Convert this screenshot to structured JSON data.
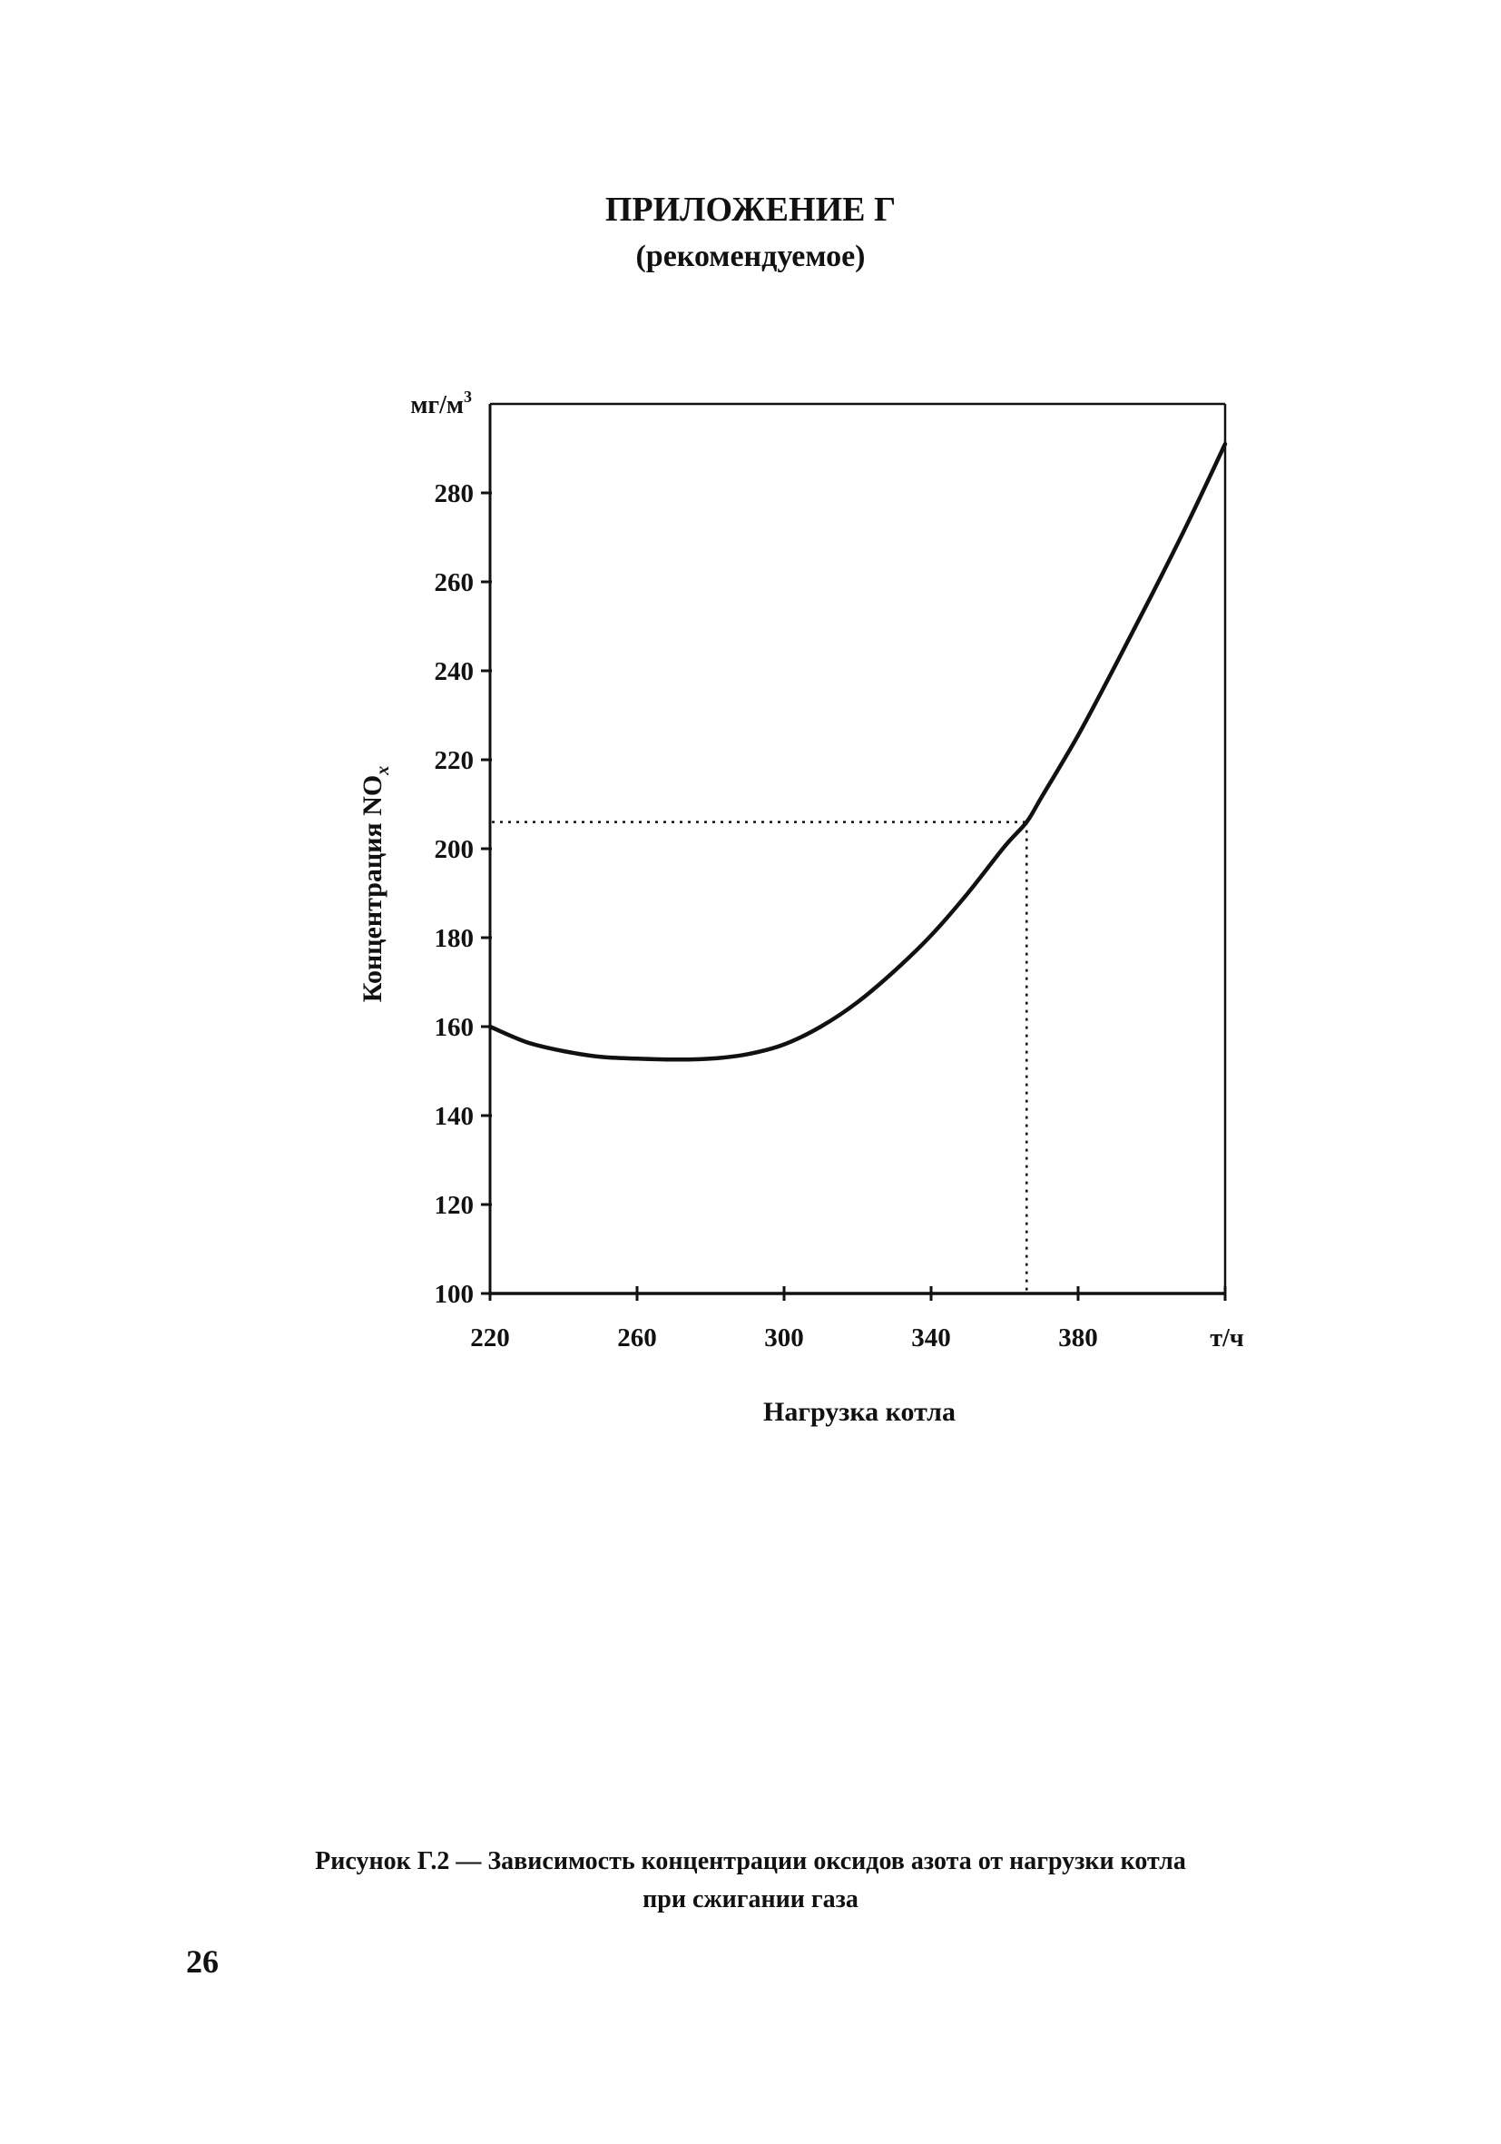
{
  "document": {
    "appendix_title": "ПРИЛОЖЕНИЕ Г",
    "appendix_status": "(рекомендуемое)",
    "caption_line1": "Рисунок Г.2 — Зависимость концентрации оксидов азота от нагрузки котла",
    "caption_line2": "при сжигании газа",
    "page_number": "26"
  },
  "chart_data": {
    "type": "line",
    "title": "",
    "xlabel": "Нагрузка котла",
    "x_unit": "т/ч",
    "ylabel": "Концентрация NO",
    "ylabel_subscript": "x",
    "y_unit": "мг/м",
    "y_unit_superscript": "3",
    "xlim": [
      220,
      420
    ],
    "ylim": [
      100,
      300
    ],
    "x_ticks": [
      220,
      260,
      300,
      340,
      380
    ],
    "y_ticks": [
      100,
      120,
      140,
      160,
      180,
      200,
      220,
      240,
      260,
      280
    ],
    "grid": false,
    "series": [
      {
        "points": [
          [
            220,
            160
          ],
          [
            230,
            156.5
          ],
          [
            240,
            154.5
          ],
          [
            250,
            153.2
          ],
          [
            260,
            152.8
          ],
          [
            270,
            152.6
          ],
          [
            280,
            152.8
          ],
          [
            290,
            153.8
          ],
          [
            300,
            156
          ],
          [
            310,
            160
          ],
          [
            320,
            165.5
          ],
          [
            330,
            172.5
          ],
          [
            340,
            180.5
          ],
          [
            350,
            190
          ],
          [
            360,
            200.5
          ],
          [
            366,
            206
          ],
          [
            370,
            211.5
          ],
          [
            380,
            225.5
          ],
          [
            390,
            241
          ],
          [
            400,
            257
          ],
          [
            410,
            273.5
          ],
          [
            420,
            291
          ]
        ]
      }
    ],
    "reference_point": {
      "x": 366,
      "y": 206
    },
    "line_color": "#111111"
  }
}
